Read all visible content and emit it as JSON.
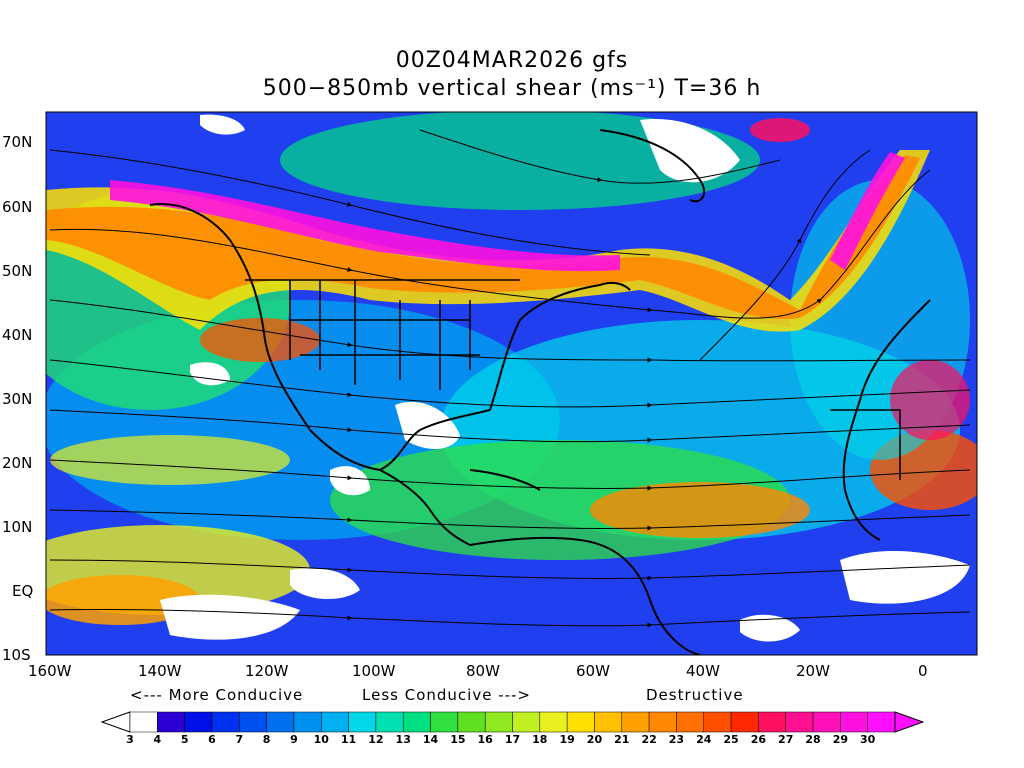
{
  "title": {
    "line1": "00Z04MAR2026 gfs",
    "line2": "500−850mb vertical shear (ms⁻¹) T=36 h"
  },
  "axes": {
    "lat_labels": [
      "70N",
      "60N",
      "50N",
      "40N",
      "30N",
      "20N",
      "10N",
      "EQ",
      "10S"
    ],
    "lon_labels": [
      "160W",
      "140W",
      "120W",
      "100W",
      "80W",
      "60W",
      "40W",
      "20W",
      "0"
    ]
  },
  "guide": {
    "more_conducive": "<--- More Conducive",
    "less_conducive": "Less Conducive --->",
    "destructive": "Destructive"
  },
  "colorbar": {
    "labels": [
      "3",
      "4",
      "5",
      "6",
      "7",
      "8",
      "9",
      "10",
      "11",
      "12",
      "13",
      "14",
      "15",
      "16",
      "17",
      "18",
      "19",
      "20",
      "21",
      "22",
      "23",
      "24",
      "25",
      "26",
      "27",
      "28",
      "29",
      "30"
    ],
    "colors": [
      "#ffffff",
      "#2a00d4",
      "#0010e8",
      "#0030f0",
      "#0050f0",
      "#0070f0",
      "#0090f0",
      "#00b0f0",
      "#00d8e8",
      "#00e0b0",
      "#00e080",
      "#30e040",
      "#60e020",
      "#90e820",
      "#c0f020",
      "#e8f020",
      "#ffe000",
      "#ffc000",
      "#ffa000",
      "#ff8800",
      "#ff7000",
      "#ff5000",
      "#ff2800",
      "#ff1060",
      "#ff1090",
      "#ff10b8",
      "#ff10e0",
      "#ff10ff"
    ]
  }
}
